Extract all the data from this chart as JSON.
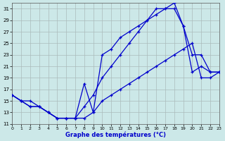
{
  "xlabel": "Graphe des températures (°C)",
  "background_color": "#cce8e8",
  "line_color": "#0000cc",
  "grid_color": "#aabbbb",
  "xlim": [
    0,
    23
  ],
  "ylim": [
    11,
    32
  ],
  "xticks": [
    0,
    1,
    2,
    3,
    4,
    5,
    6,
    7,
    8,
    9,
    10,
    11,
    12,
    13,
    14,
    15,
    16,
    17,
    18,
    19,
    20,
    21,
    22,
    23
  ],
  "yticks": [
    11,
    13,
    15,
    17,
    19,
    21,
    23,
    25,
    27,
    29,
    31
  ],
  "curves": [
    {
      "x": [
        0,
        1,
        2,
        3,
        4,
        5,
        6,
        7,
        8,
        9,
        10,
        11,
        12,
        13,
        14,
        15,
        16,
        17,
        18,
        19,
        20,
        21,
        22,
        23
      ],
      "y": [
        16,
        15,
        14,
        14,
        13,
        12,
        12,
        12,
        12,
        13,
        15,
        16,
        17,
        18,
        19,
        20,
        21,
        22,
        23,
        24,
        25,
        19,
        19,
        20
      ]
    },
    {
      "x": [
        0,
        1,
        2,
        3,
        4,
        5,
        6,
        7,
        8,
        9,
        10,
        11,
        12,
        13,
        14,
        15,
        16,
        17,
        18,
        19,
        20,
        21,
        22,
        23
      ],
      "y": [
        16,
        15,
        14,
        14,
        13,
        12,
        12,
        12,
        18,
        13,
        23,
        24,
        26,
        27,
        28,
        29,
        30,
        31,
        32,
        28,
        20,
        21,
        20,
        20
      ]
    },
    {
      "x": [
        0,
        1,
        2,
        3,
        4,
        5,
        6,
        7,
        8,
        9,
        10,
        11,
        12,
        13,
        14,
        15,
        16,
        17,
        18,
        19,
        20,
        21,
        22,
        23
      ],
      "y": [
        16,
        15,
        15,
        14,
        13,
        12,
        12,
        12,
        14,
        16,
        19,
        21,
        23,
        25,
        27,
        29,
        31,
        31,
        31,
        28,
        23,
        23,
        20,
        20
      ]
    }
  ]
}
